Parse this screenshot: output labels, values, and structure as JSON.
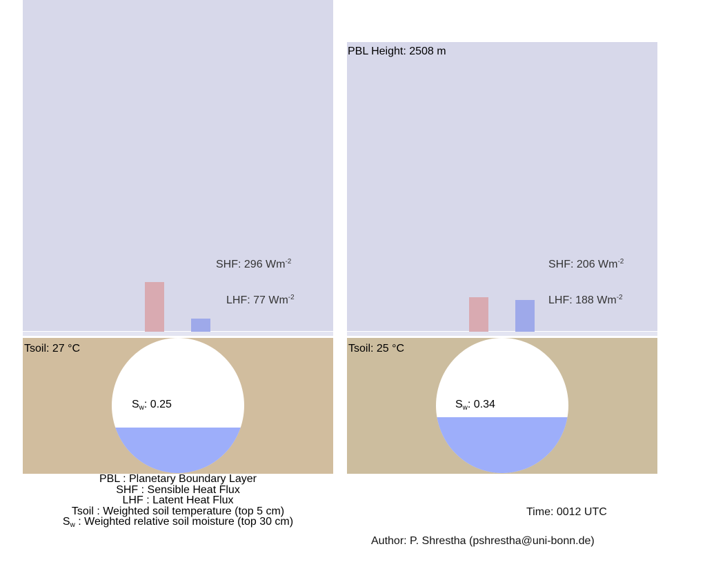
{
  "panels": [
    {
      "pbl_height_label": "",
      "shf": {
        "label_prefix": "SHF: 296 Wm",
        "label_exp": "-2",
        "value": 296,
        "color": "#d9aab1"
      },
      "lhf": {
        "label_prefix": "LHF:  77 Wm",
        "label_exp": "-2",
        "value": 77,
        "color": "#9ea9ea"
      },
      "tsoil_label": "Tsoil: 27 °C",
      "soil_color": "#d1bd9e",
      "sw": {
        "symbol": "S",
        "subscript": "w",
        "value_text": ": 0.25",
        "value": 0.25,
        "water_color": "#9daefa"
      }
    },
    {
      "pbl_height_label": "PBL Height: 2508 m",
      "shf": {
        "label_prefix": "SHF: 206 Wm",
        "label_exp": "-2",
        "value": 206,
        "color": "#d9aab1"
      },
      "lhf": {
        "label_prefix": "LHF: 188 Wm",
        "label_exp": "-2",
        "value": 188,
        "color": "#9ea9ea"
      },
      "tsoil_label": "Tsoil: 25 °C",
      "soil_color": "#ccbd9e",
      "sw": {
        "symbol": "S",
        "subscript": "w",
        "value_text": ": 0.34",
        "value": 0.34,
        "water_color": "#9daefa"
      }
    }
  ],
  "legend": {
    "line1": "PBL : Planetary Boundary Layer",
    "line2": "SHF : Sensible Heat Flux",
    "line3": "LHF : Latent Heat Flux",
    "line4": "Tsoil : Weighted soil temperature (top 5 cm)",
    "line5_symbol": "S",
    "line5_sub": "w",
    "line5_rest": " : Weighted relative soil moisture (top 30 cm)"
  },
  "time_label": "Time: 0012 UTC",
  "author_label": "Author: P. Shrestha (pshrestha@uni-bonn.de)"
}
